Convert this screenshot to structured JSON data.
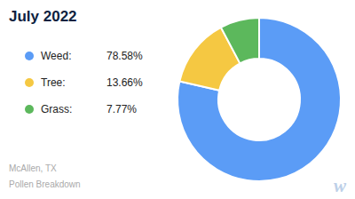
{
  "chart_data": {
    "type": "pie",
    "title": "July 2022",
    "subtitle": [
      "McAllen, TX",
      "Pollen Breakdown"
    ],
    "annotations": [
      "w"
    ],
    "categories": [
      "Weed:",
      "Tree:",
      "Grass:"
    ],
    "values": [
      78.58,
      13.66,
      7.77
    ],
    "value_labels": [
      "78.58%",
      "13.66%",
      "7.77%"
    ],
    "colors": [
      "#5b9cf6",
      "#f5c842",
      "#5cb85c"
    ],
    "legend": "left"
  }
}
